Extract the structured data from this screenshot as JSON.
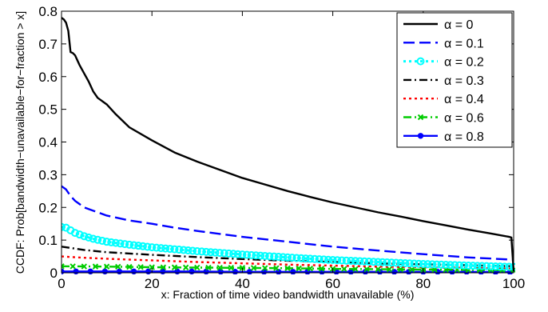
{
  "chart_data": {
    "type": "line",
    "xlabel": "x: Fraction of time video bandwidth unavailable (%)",
    "ylabel": "CCDF: Prob[bandwidth−unavailable−for−fraction > x]",
    "xlim": [
      0,
      100
    ],
    "ylim": [
      0,
      0.8
    ],
    "xticks": [
      0,
      20,
      40,
      60,
      80,
      100
    ],
    "yticks": [
      0,
      0.1,
      0.2,
      0.3,
      0.4,
      0.5,
      0.6,
      0.7,
      0.8
    ],
    "grid": false,
    "legend_position": "top-right",
    "series": [
      {
        "name": "α = 0",
        "color": "#000000",
        "style": "solid",
        "marker": "none",
        "x": [
          0,
          0.5,
          1,
          1.5,
          2,
          2.5,
          3,
          4,
          5,
          6,
          6.5,
          7,
          8,
          10,
          12,
          15,
          20,
          25,
          30,
          35,
          40,
          45,
          50,
          55,
          60,
          65,
          70,
          75,
          80,
          85,
          90,
          95,
          99,
          99.5,
          100
        ],
        "y": [
          0.78,
          0.775,
          0.765,
          0.74,
          0.675,
          0.672,
          0.665,
          0.635,
          0.61,
          0.585,
          0.57,
          0.555,
          0.535,
          0.515,
          0.485,
          0.445,
          0.405,
          0.368,
          0.34,
          0.315,
          0.29,
          0.27,
          0.25,
          0.232,
          0.215,
          0.2,
          0.185,
          0.172,
          0.158,
          0.145,
          0.132,
          0.12,
          0.11,
          0.108,
          0.005
        ]
      },
      {
        "name": "α = 0.1",
        "color": "#0000ff",
        "style": "dashed",
        "marker": "none",
        "x": [
          0,
          1,
          2,
          3,
          4,
          5,
          7,
          10,
          15,
          20,
          25,
          30,
          40,
          50,
          60,
          70,
          80,
          90,
          100
        ],
        "y": [
          0.265,
          0.255,
          0.235,
          0.22,
          0.21,
          0.2,
          0.19,
          0.175,
          0.16,
          0.15,
          0.138,
          0.128,
          0.11,
          0.095,
          0.08,
          0.068,
          0.057,
          0.047,
          0.04
        ]
      },
      {
        "name": "α = 0.2",
        "color": "#00ffff",
        "style": "dotted",
        "marker": "circle",
        "x": [
          0,
          1,
          2,
          3,
          5,
          7,
          10,
          15,
          20,
          25,
          30,
          40,
          50,
          60,
          70,
          80,
          90,
          100
        ],
        "y": [
          0.14,
          0.138,
          0.13,
          0.122,
          0.112,
          0.104,
          0.095,
          0.086,
          0.078,
          0.072,
          0.066,
          0.056,
          0.047,
          0.039,
          0.033,
          0.027,
          0.022,
          0.018
        ]
      },
      {
        "name": "α = 0.3",
        "color": "#000000",
        "style": "dashdot",
        "marker": "none",
        "x": [
          0,
          2,
          5,
          10,
          20,
          30,
          40,
          50,
          60,
          70,
          80,
          90,
          100
        ],
        "y": [
          0.08,
          0.076,
          0.07,
          0.063,
          0.055,
          0.048,
          0.042,
          0.037,
          0.033,
          0.029,
          0.026,
          0.023,
          0.02
        ]
      },
      {
        "name": "α = 0.4",
        "color": "#ff0000",
        "style": "dotted",
        "marker": "none",
        "x": [
          0,
          5,
          10,
          20,
          30,
          40,
          50,
          60,
          70,
          80,
          90,
          100
        ],
        "y": [
          0.05,
          0.046,
          0.043,
          0.038,
          0.033,
          0.029,
          0.025,
          0.022,
          0.019,
          0.017,
          0.015,
          0.013
        ]
      },
      {
        "name": "α = 0.6",
        "color": "#00cc00",
        "style": "dashdot",
        "marker": "x",
        "x": [
          0,
          10,
          20,
          30,
          40,
          50,
          60,
          70,
          80,
          90,
          100
        ],
        "y": [
          0.02,
          0.019,
          0.017,
          0.016,
          0.015,
          0.014,
          0.012,
          0.011,
          0.01,
          0.009,
          0.008
        ]
      },
      {
        "name": "α = 0.8",
        "color": "#0000ff",
        "style": "solid",
        "marker": "dot",
        "x": [
          0,
          10,
          20,
          30,
          40,
          50,
          60,
          70,
          80,
          90,
          100
        ],
        "y": [
          0.004,
          0.004,
          0.004,
          0.004,
          0.003,
          0.003,
          0.003,
          0.003,
          0.003,
          0.003,
          0.002
        ]
      }
    ]
  }
}
